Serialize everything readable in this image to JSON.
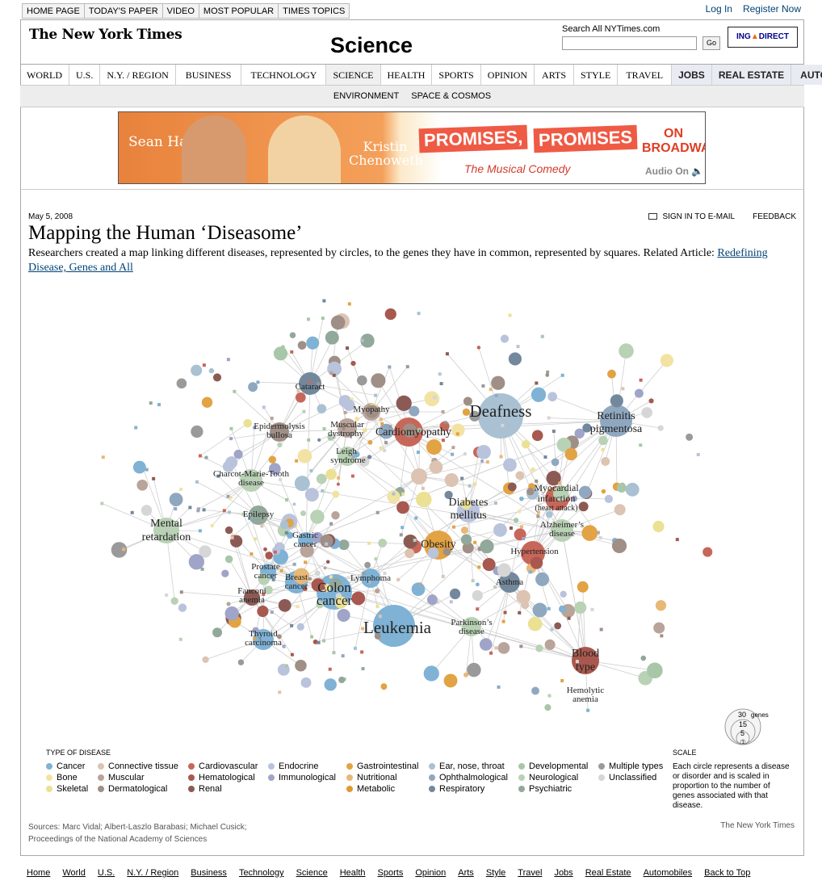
{
  "top_links": [
    "HOME PAGE",
    "TODAY'S PAPER",
    "VIDEO",
    "MOST POPULAR",
    "TIMES TOPICS"
  ],
  "account": {
    "login": "Log In",
    "register": "Register Now"
  },
  "masthead": {
    "logo": "The New York Times",
    "section": "Science"
  },
  "search": {
    "label": "Search All NYTimes.com",
    "go": "Go",
    "sponsor_a": "ING",
    "sponsor_b": "DIRECT"
  },
  "main_nav": [
    "WORLD",
    "U.S.",
    "N.Y. / REGION",
    "BUSINESS",
    "TECHNOLOGY",
    "SCIENCE",
    "HEALTH",
    "SPORTS",
    "OPINION",
    "ARTS",
    "STYLE",
    "TRAVEL",
    "JOBS",
    "REAL ESTATE",
    "AUTOS"
  ],
  "sub_nav": [
    "ENVIRONMENT",
    "SPACE & COSMOS"
  ],
  "ad": {
    "name1": "Sean Hayes",
    "name2": "Kristin Chenoweth",
    "promise": "PROMISES,",
    "promise2": "PROMISES",
    "tagline": "The Musical Comedy",
    "venue": "ON BROADWAY",
    "audio": "Audio On"
  },
  "article": {
    "date": "May 5, 2008",
    "sign_in": "SIGN IN TO E-MAIL",
    "feedback": "FEEDBACK",
    "headline": "Mapping the Human ‘Diseasome’",
    "dek": "Researchers created a map linking different diseases, represented by circles, to the genes they have in common, represented by squares. Related Article: ",
    "related_link": "Redefining Disease, Genes and All"
  },
  "network_labels": {
    "cataract": "Cataract",
    "myopathy": "Myopathy",
    "epidermolysis": "Epidermolysis",
    "bullosa": "bullosa",
    "muscular": "Muscular",
    "dystrophy": "dystrophy",
    "cardiomyopathy": "Cardiomyopathy",
    "leigh": "Leigh",
    "syndrome": "syndrome",
    "deafness": "Deafness",
    "retinitis": "Retinitis",
    "pigmentosa": "pigmentosa",
    "cmt1": "Charcot-Marie-Tooth",
    "cmt2": "disease",
    "diabetes": "Diabetes",
    "mellitus": "mellitus",
    "myocardial": "Myocardial",
    "infarction": "infarction",
    "heart_attack": "(heart attack)",
    "mental": "Mental",
    "retardation": "retardation",
    "epilepsy": "Epilepsy",
    "gastric": "Gastric",
    "cancer": "cancer",
    "alzheimers": "Alzheimer’s",
    "disease": "disease",
    "obesity": "Obesity",
    "hypertension": "Hypertension",
    "prostate": "Prostate",
    "breast": "Breast",
    "lymphoma": "Lymphoma",
    "colon": "Colon",
    "fanconi": "Fanconi",
    "anemia": "anemia",
    "asthma": "Asthma",
    "leukemia": "Leukemia",
    "parkinsons": "Parkinson’s",
    "thyroid": "Thyroid",
    "carcinoma": "carcinoma",
    "blood": "Blood",
    "type": "type",
    "hemolytic": "Hemolytic"
  },
  "legend": {
    "title": "TYPE OF DISEASE",
    "items": [
      {
        "label": "Cancer",
        "color": "#7fb2d5"
      },
      {
        "label": "Connective tissue",
        "color": "#dcc3b2"
      },
      {
        "label": "Cardiovascular",
        "color": "#c7675a"
      },
      {
        "label": "Endocrine",
        "color": "#b9c3dc"
      },
      {
        "label": "Gastrointestinal",
        "color": "#e2a344"
      },
      {
        "label": "Ear, nose, throat",
        "color": "#a9c1d2"
      },
      {
        "label": "Developmental",
        "color": "#a8c7a8"
      },
      {
        "label": "Multiple types",
        "color": "#9a9a9a"
      },
      {
        "label": "Bone",
        "color": "#f2e3a4"
      },
      {
        "label": "Muscular",
        "color": "#b8a49a"
      },
      {
        "label": "Hematological",
        "color": "#a8584e"
      },
      {
        "label": "Immunological",
        "color": "#9fa4c8"
      },
      {
        "label": "Nutritional",
        "color": "#e8b878"
      },
      {
        "label": "Ophthalmological",
        "color": "#8fa8c0"
      },
      {
        "label": "Neurological",
        "color": "#b9d1b5"
      },
      {
        "label": "Unclassified",
        "color": "#d6d6d6"
      },
      {
        "label": "Skeletal",
        "color": "#ece094"
      },
      {
        "label": "Dermatological",
        "color": "#a08f86"
      },
      {
        "label": "Renal",
        "color": "#8c5a54"
      },
      {
        "label": "",
        "color": ""
      },
      {
        "label": "Metabolic",
        "color": "#e09a34"
      },
      {
        "label": "Respiratory",
        "color": "#73889c"
      },
      {
        "label": "Psychiatric",
        "color": "#92a89a"
      },
      {
        "label": "",
        "color": ""
      }
    ]
  },
  "scale": {
    "title": "SCALE",
    "text": "Each circle represents a disease or disorder and is scaled in proportion to the number of genes associated with that disease.",
    "unit": "genes",
    "values": [
      "30",
      "15",
      "5",
      "1"
    ]
  },
  "sources": {
    "line1": "Sources: Marc Vidal; Albert-Laszlo Barabasi; Michael Cusick;",
    "line2": "Proceedings of the National Academy of Sciences",
    "credit": "The New York Times"
  },
  "footer": [
    "Home",
    "World",
    "U.S.",
    "N.Y. / Region",
    "Business",
    "Technology",
    "Science",
    "Health",
    "Sports",
    "Opinion",
    "Arts",
    "Style",
    "Travel",
    "Jobs",
    "Real Estate",
    "Automobiles",
    "Back to Top"
  ]
}
